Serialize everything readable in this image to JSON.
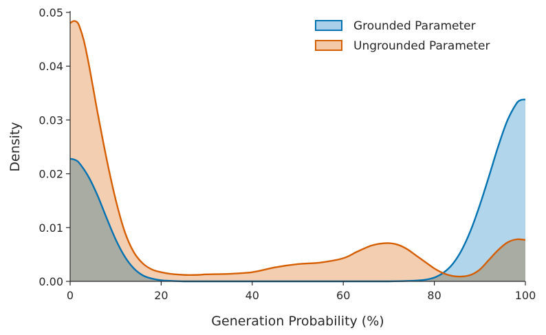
{
  "chart_data": {
    "type": "area",
    "title": "",
    "xlabel": "Generation Probability (%)",
    "ylabel": "Density",
    "xlim": [
      0,
      100
    ],
    "ylim": [
      0,
      0.05
    ],
    "xticks": [
      0,
      20,
      40,
      60,
      80,
      100
    ],
    "xtick_labels": [
      "0",
      "20",
      "40",
      "60",
      "80",
      "100"
    ],
    "yticks": [
      0,
      0.01,
      0.02,
      0.03,
      0.04,
      0.05
    ],
    "ytick_labels": [
      "0.00",
      "0.01",
      "0.02",
      "0.03",
      "0.04",
      "0.05"
    ],
    "grid": false,
    "legend_position": "top-right",
    "series": [
      {
        "name": "Grounded Parameter",
        "line_color": "#0072B2",
        "fill_color": "#a9d0e8",
        "x": [
          0,
          1,
          2,
          4,
          6,
          8,
          10,
          12,
          14,
          16,
          18,
          20,
          22,
          25,
          30,
          40,
          60,
          70,
          75,
          78,
          80,
          82,
          84,
          86,
          88,
          90,
          92,
          94,
          96,
          98,
          99,
          100
        ],
        "y": [
          0.0228,
          0.0226,
          0.022,
          0.0195,
          0.016,
          0.0118,
          0.0078,
          0.0046,
          0.0024,
          0.0011,
          0.0005,
          0.0002,
          0.0001,
          0.0,
          0.0,
          0.0,
          0.0,
          0.0,
          0.0001,
          0.0003,
          0.0007,
          0.0016,
          0.0032,
          0.0058,
          0.0095,
          0.0142,
          0.0195,
          0.025,
          0.0298,
          0.033,
          0.0337,
          0.0338
        ]
      },
      {
        "name": "Ungrounded Parameter",
        "line_color": "#D55E00",
        "fill_color": "#f3c9a8",
        "x": [
          0,
          0.5,
          1,
          1.5,
          2,
          3,
          4,
          5,
          6,
          8,
          10,
          12,
          14,
          16,
          18,
          20,
          22,
          25,
          28,
          30,
          35,
          40,
          45,
          50,
          55,
          60,
          63,
          66,
          68,
          70,
          72,
          74,
          76,
          78,
          80,
          82,
          84,
          86,
          88,
          90,
          92,
          94,
          96,
          98,
          100
        ],
        "y": [
          0.048,
          0.0483,
          0.0484,
          0.0482,
          0.0475,
          0.0448,
          0.0408,
          0.0362,
          0.0315,
          0.0228,
          0.0152,
          0.0092,
          0.0054,
          0.0033,
          0.0022,
          0.0017,
          0.0014,
          0.0012,
          0.0012,
          0.0013,
          0.0014,
          0.0017,
          0.0026,
          0.0032,
          0.0035,
          0.0043,
          0.0055,
          0.0066,
          0.007,
          0.0071,
          0.0068,
          0.006,
          0.0048,
          0.0036,
          0.0024,
          0.0015,
          0.001,
          0.0009,
          0.0012,
          0.0022,
          0.004,
          0.0058,
          0.0072,
          0.0078,
          0.0077
        ]
      }
    ]
  }
}
